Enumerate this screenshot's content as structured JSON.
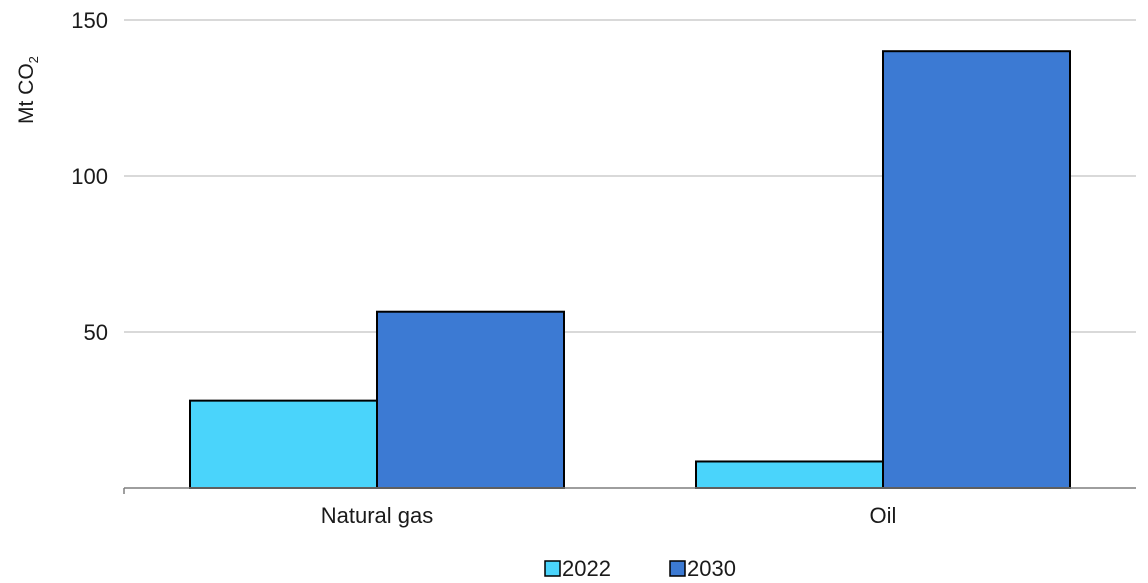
{
  "chart_data": {
    "type": "bar",
    "categories": [
      "Natural gas",
      "Oil"
    ],
    "series": [
      {
        "name": "2022",
        "color": "#4ad4fb",
        "values": [
          28,
          8.5
        ]
      },
      {
        "name": "2030",
        "color": "#3c7ad3",
        "values": [
          56.5,
          140
        ]
      }
    ],
    "ylabel": "Mt CO",
    "ylabel_subscript": "2",
    "ylim": [
      0,
      150
    ],
    "yticks": [
      50,
      100,
      150
    ],
    "grid": true,
    "legend": "bottom-center"
  }
}
